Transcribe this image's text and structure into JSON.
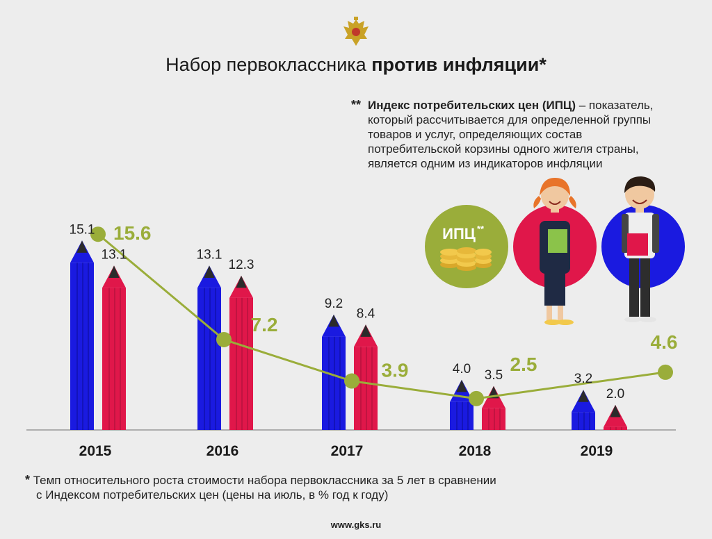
{
  "header": {
    "logo_icon": "double-headed-eagle-emblem",
    "title_regular": "Набор первоклассника",
    "title_bold": "против инфляции*"
  },
  "definition_note": {
    "marker": "**",
    "term": "Индекс потребительских цен (ИПЦ)",
    "text_line1": " – показатель,",
    "text_line2": "который рассчитывается для определенной группы",
    "text_line3": "товаров и услуг, определяющих состав",
    "text_line4": "потребительской корзины одного жителя страны,",
    "text_line5": "является одним из индикаторов инфляции"
  },
  "illustrations": {
    "cpi_badge_label": "ИПЦ",
    "cpi_badge_sup": "**",
    "cpi_badge_icon": "coin-stacks-icon",
    "girl_icon": "schoolgirl-illustration",
    "boy_icon": "schoolboy-illustration"
  },
  "chart_data": {
    "type": "bar",
    "categories": [
      "2015",
      "2016",
      "2017",
      "2018",
      "2019"
    ],
    "series": [
      {
        "values": [
          15.1,
          13.1,
          9.2,
          4.0,
          3.2
        ],
        "color": "#1a1ae0",
        "labels": [
          "15.1",
          "13.1",
          "9.2",
          "4.0",
          "3.2"
        ]
      },
      {
        "values": [
          13.1,
          12.3,
          8.4,
          3.5,
          2.0
        ],
        "color": "#e0174a",
        "labels": [
          "13.1",
          "12.3",
          "8.4",
          "3.5",
          "2.0"
        ]
      }
    ],
    "line_series": {
      "type": "line",
      "values": [
        15.6,
        7.2,
        3.9,
        2.5,
        4.6
      ],
      "labels": [
        "15.6",
        "7.2",
        "3.9",
        "2.5",
        "4.6"
      ],
      "color": "#9aad3a"
    },
    "ylim": [
      0,
      16
    ],
    "grid": false,
    "bar_shape": "pencil"
  },
  "footnote": {
    "marker": "*",
    "line1": " Темп относительного роста стоимости набора первоклассника за 5 лет в сравнении",
    "line2": "с Индексом потребительских цен (цены на июль, в % год к году)"
  },
  "site": "www.gks.ru"
}
